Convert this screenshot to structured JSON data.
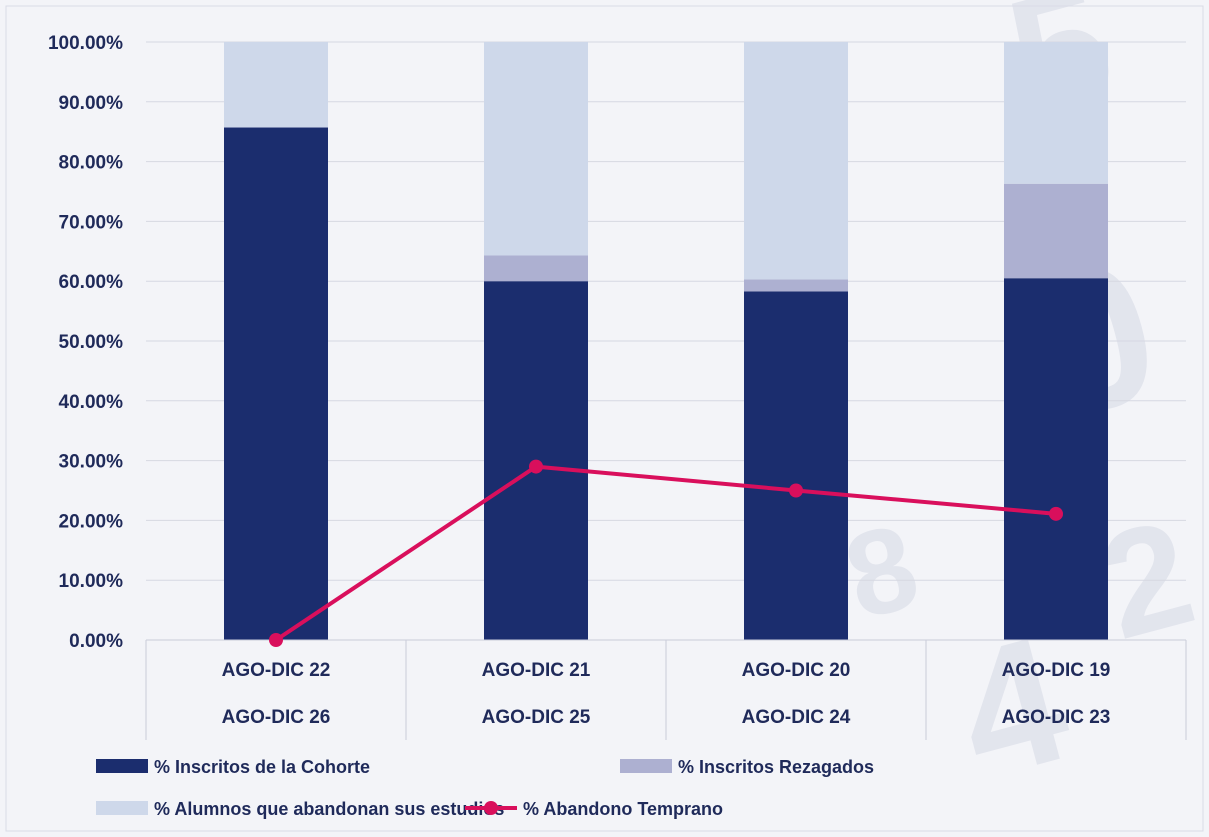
{
  "chart_data": {
    "type": "bar",
    "stacked": true,
    "categories": [
      [
        "AGO-DIC 22",
        "AGO-DIC 26"
      ],
      [
        "AGO-DIC 21",
        "AGO-DIC 25"
      ],
      [
        "AGO-DIC 20",
        "AGO-DIC 24"
      ],
      [
        "AGO-DIC 19",
        "AGO-DIC 23"
      ]
    ],
    "ylim": [
      0,
      100
    ],
    "yticks": [
      "0.00%",
      "10.00%",
      "20.00%",
      "30.00%",
      "40.00%",
      "50.00%",
      "60.00%",
      "70.00%",
      "80.00%",
      "90.00%",
      "100.00%"
    ],
    "grid": true,
    "legend_position": "bottom",
    "series": [
      {
        "name": "% Inscritos de la Cohorte",
        "kind": "bar",
        "color": "#1b2d6e",
        "values": [
          85.7,
          60.0,
          58.3,
          60.5
        ]
      },
      {
        "name": "% Inscritos Rezagados",
        "kind": "bar",
        "color": "#adb0d1",
        "values": [
          0.0,
          4.3,
          2.0,
          15.8
        ]
      },
      {
        "name": "% Alumnos que abandonan sus estudios",
        "kind": "bar",
        "color": "#ced8ea",
        "values": [
          14.3,
          35.7,
          39.7,
          23.7
        ]
      },
      {
        "name": "% Abandono Temprano",
        "kind": "line",
        "color": "#d90f5c",
        "values": [
          0.0,
          29.0,
          25.0,
          21.1
        ]
      }
    ]
  }
}
